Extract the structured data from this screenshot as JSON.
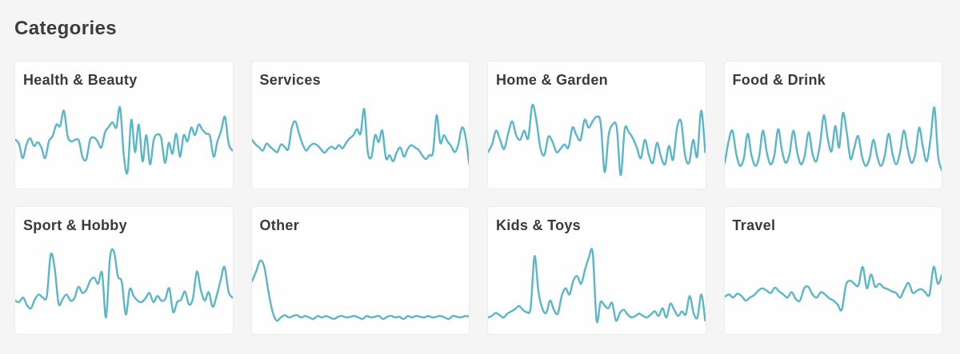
{
  "page": {
    "title": "Categories"
  },
  "colors": {
    "background": "#f5f5f5",
    "card_background": "#fefefe",
    "card_border": "#ececec",
    "heading_text": "#3c3c3c",
    "sparkline": "#5ab6c8"
  },
  "chart_data": [
    {
      "type": "line",
      "title": "Health & Beauty",
      "axes": "hidden",
      "ylim": [
        0,
        100
      ],
      "line_color": "#5ab6c8",
      "values": [
        50,
        45,
        26,
        44,
        52,
        42,
        47,
        40,
        26,
        48,
        55,
        70,
        68,
        88,
        55,
        48,
        50,
        49,
        27,
        25,
        50,
        53,
        48,
        40,
        60,
        67,
        73,
        66,
        92,
        30,
        8,
        76,
        34,
        70,
        22,
        56,
        18,
        50,
        57,
        52,
        20,
        46,
        32,
        58,
        28,
        56,
        48,
        66,
        56,
        70,
        63,
        58,
        55,
        28,
        48,
        62,
        80,
        45,
        36
      ]
    },
    {
      "type": "line",
      "title": "Services",
      "axes": "hidden",
      "ylim": [
        0,
        100
      ],
      "line_color": "#5ab6c8",
      "values": [
        50,
        44,
        40,
        36,
        45,
        41,
        37,
        34,
        44,
        41,
        38,
        66,
        74,
        58,
        44,
        36,
        42,
        45,
        43,
        38,
        33,
        38,
        41,
        38,
        43,
        39,
        46,
        52,
        56,
        64,
        58,
        90,
        34,
        28,
        56,
        47,
        62,
        26,
        30,
        22,
        34,
        40,
        28,
        38,
        43,
        40,
        37,
        30,
        25,
        30,
        34,
        82,
        46,
        56,
        48,
        42,
        34,
        44,
        66,
        54,
        18
      ]
    },
    {
      "type": "line",
      "title": "Home & Garden",
      "axes": "hidden",
      "ylim": [
        0,
        100
      ],
      "line_color": "#5ab6c8",
      "values": [
        34,
        44,
        62,
        50,
        38,
        58,
        74,
        56,
        50,
        62,
        52,
        95,
        76,
        40,
        30,
        54,
        48,
        34,
        38,
        44,
        40,
        66,
        56,
        50,
        76,
        66,
        74,
        80,
        72,
        8,
        56,
        70,
        66,
        4,
        64,
        60,
        52,
        40,
        26,
        50,
        30,
        20,
        46,
        28,
        18,
        42,
        24,
        66,
        74,
        30,
        20,
        50,
        28,
        88,
        34
      ]
    },
    {
      "type": "line",
      "title": "Food & Drink",
      "axes": "hidden",
      "ylim": [
        0,
        100
      ],
      "line_color": "#5ab6c8",
      "values": [
        20,
        48,
        62,
        32,
        16,
        26,
        58,
        30,
        16,
        28,
        62,
        34,
        18,
        30,
        64,
        36,
        20,
        32,
        62,
        34,
        18,
        30,
        60,
        32,
        22,
        45,
        82,
        52,
        35,
        68,
        40,
        85,
        60,
        25,
        40,
        55,
        28,
        16,
        26,
        50,
        28,
        16,
        30,
        58,
        32,
        18,
        34,
        62,
        38,
        20,
        32,
        66,
        40,
        22,
        52,
        92,
        28,
        10
      ]
    },
    {
      "type": "line",
      "title": "Sport & Hobby",
      "axes": "hidden",
      "ylim": [
        0,
        100
      ],
      "line_color": "#5ab6c8",
      "values": [
        30,
        28,
        34,
        24,
        20,
        32,
        38,
        34,
        36,
        90,
        72,
        26,
        32,
        38,
        30,
        33,
        48,
        40,
        44,
        56,
        60,
        52,
        66,
        8,
        86,
        94,
        62,
        54,
        12,
        45,
        36,
        30,
        28,
        33,
        40,
        28,
        36,
        30,
        32,
        46,
        15,
        28,
        31,
        42,
        25,
        33,
        68,
        44,
        30,
        41,
        22,
        36,
        56,
        74,
        42,
        34
      ]
    },
    {
      "type": "line",
      "title": "Other",
      "axes": "hidden",
      "ylim": [
        0,
        100
      ],
      "line_color": "#5ab6c8",
      "values": [
        55,
        68,
        82,
        74,
        42,
        16,
        4,
        8,
        11,
        8,
        10,
        11,
        8,
        10,
        8,
        6,
        10,
        8,
        10,
        8,
        6,
        9,
        10,
        8,
        9,
        10,
        8,
        6,
        10,
        8,
        9,
        10,
        6,
        9,
        10,
        8,
        9,
        6,
        10,
        8,
        10,
        9,
        8,
        10,
        8,
        9,
        10,
        8,
        6,
        10,
        9,
        8,
        10,
        9
      ]
    },
    {
      "type": "line",
      "title": "Kids & Toys",
      "axes": "hidden",
      "ylim": [
        0,
        100
      ],
      "line_color": "#5ab6c8",
      "values": [
        8,
        10,
        14,
        11,
        8,
        13,
        16,
        19,
        23,
        18,
        15,
        21,
        88,
        42,
        20,
        14,
        30,
        18,
        13,
        36,
        46,
        38,
        56,
        62,
        52,
        70,
        86,
        92,
        4,
        28,
        24,
        20,
        27,
        4,
        14,
        18,
        12,
        8,
        10,
        13,
        10,
        8,
        12,
        16,
        10,
        20,
        8,
        26,
        18,
        10,
        16,
        12,
        36,
        14,
        8,
        38,
        4
      ]
    },
    {
      "type": "line",
      "title": "Travel",
      "axes": "hidden",
      "ylim": [
        0,
        100
      ],
      "line_color": "#5ab6c8",
      "values": [
        35,
        38,
        34,
        39,
        36,
        30,
        34,
        37,
        43,
        46,
        43,
        40,
        47,
        42,
        38,
        34,
        41,
        32,
        30,
        46,
        48,
        38,
        34,
        41,
        38,
        33,
        30,
        25,
        18,
        50,
        56,
        52,
        50,
        74,
        46,
        64,
        48,
        52,
        47,
        45,
        42,
        40,
        34,
        45,
        53,
        40,
        43,
        45,
        41,
        38,
        74,
        52,
        64
      ]
    }
  ]
}
